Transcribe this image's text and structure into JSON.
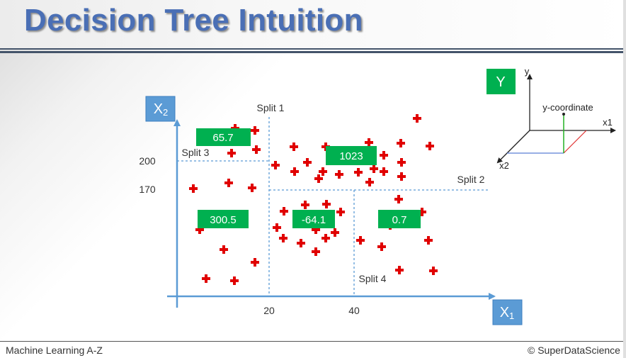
{
  "title": "Decision Tree Intuition",
  "footer": {
    "left": "Machine Learning A-Z",
    "right": "© SuperDataScience"
  },
  "axis": {
    "x_label": "X1",
    "y_label": "X2",
    "x_label_base": "X",
    "x_label_sub": "1",
    "y_label_base": "X",
    "y_label_sub": "2"
  },
  "ticks": {
    "x20": "20",
    "x40": "40",
    "y200": "200",
    "y170": "170"
  },
  "splits": {
    "split1": "Split 1",
    "split2": "Split 2",
    "split3": "Split 3",
    "split4": "Split 4"
  },
  "leaf_values": {
    "top_left": "65.7",
    "top_right": "1023",
    "bottom_left": "300.5",
    "bottom_middle": "-64.1",
    "bottom_right": "0.7"
  },
  "inset": {
    "y_box": "Y",
    "y_axis": "y",
    "x1_axis": "x1",
    "x2_axis": "x2",
    "coordinate_label": "y-coordinate"
  },
  "colors": {
    "title": "#4a6fb5",
    "leaf_box": "#00b050",
    "axis_box": "#5b9bd5",
    "point": "#e00000",
    "split_line": "#5b9bd5"
  }
}
